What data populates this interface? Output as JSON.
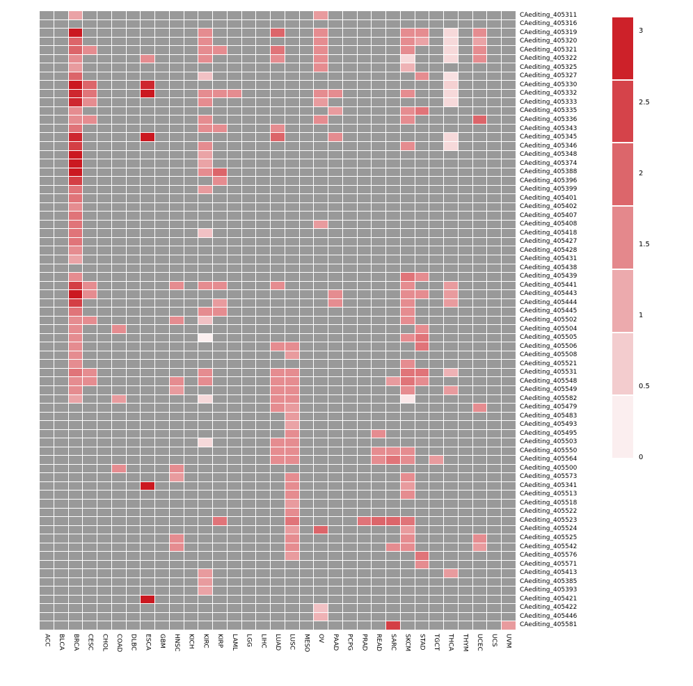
{
  "chart_data": {
    "type": "heatmap",
    "title": "",
    "rows": [
      "CAediting_405311",
      "CAediting_405316",
      "CAediting_405319",
      "CAediting_405320",
      "CAediting_405321",
      "CAediting_405322",
      "CAediting_405325",
      "CAediting_405327",
      "CAediting_405330",
      "CAediting_405332",
      "CAediting_405333",
      "CAediting_405335",
      "CAediting_405336",
      "CAediting_405343",
      "CAediting_405345",
      "CAediting_405346",
      "CAediting_405348",
      "CAediting_405374",
      "CAediting_405388",
      "CAediting_405396",
      "CAediting_405399",
      "CAediting_405401",
      "CAediting_405402",
      "CAediting_405407",
      "CAediting_405408",
      "CAediting_405418",
      "CAediting_405427",
      "CAediting_405428",
      "CAediting_405431",
      "CAediting_405438",
      "CAediting_405439",
      "CAediting_405441",
      "CAediting_405443",
      "CAediting_405444",
      "CAediting_405445",
      "CAediting_405502",
      "CAediting_405504",
      "CAediting_405505",
      "CAediting_405506",
      "CAediting_405508",
      "CAediting_405521",
      "CAediting_405531",
      "CAediting_405548",
      "CAediting_405549",
      "CAediting_405582",
      "CAediting_405479",
      "CAediting_405483",
      "CAediting_405493",
      "CAediting_405495",
      "CAediting_405503",
      "CAediting_405550",
      "CAediting_405564",
      "CAediting_405500",
      "CAediting_405573",
      "CAediting_405341",
      "CAediting_405513",
      "CAediting_405518",
      "CAediting_405522",
      "CAediting_405523",
      "CAediting_405524",
      "CAediting_405525",
      "CAediting_405542",
      "CAediting_405576",
      "CAediting_405571",
      "CAediting_405413",
      "CAediting_405385",
      "CAediting_405393",
      "CAediting_405421",
      "CAediting_405422",
      "CAediting_405446",
      "CAediting_405581"
    ],
    "columns": [
      "ACC",
      "BLCA",
      "BRCA",
      "CESC",
      "CHOL",
      "COAD",
      "DLBC",
      "ESCA",
      "GBM",
      "HNSC",
      "KICH",
      "KIRC",
      "KIRP",
      "LAML",
      "LGG",
      "LIHC",
      "LUAD",
      "LUSC",
      "MESO",
      "OV",
      "PAAD",
      "PCPG",
      "PRAD",
      "READ",
      "SARC",
      "SKCM",
      "STAD",
      "TGCT",
      "THCA",
      "THYM",
      "UCEC",
      "UCS",
      "UVM"
    ],
    "na_color": "#999999",
    "colormap": {
      "low": "#ffffff",
      "high": "#cb1820",
      "min": 0,
      "max": 3
    },
    "legend_position": "right",
    "cells": [
      [
        0,
        2,
        1.2
      ],
      [
        0,
        19,
        1.3
      ],
      [
        2,
        2,
        3
      ],
      [
        2,
        11,
        1.5
      ],
      [
        2,
        16,
        2
      ],
      [
        2,
        19,
        1.5
      ],
      [
        2,
        25,
        1.5
      ],
      [
        2,
        26,
        1.5
      ],
      [
        2,
        28,
        0.5
      ],
      [
        2,
        30,
        1.5
      ],
      [
        3,
        2,
        2
      ],
      [
        3,
        11,
        1.5
      ],
      [
        3,
        19,
        1.5
      ],
      [
        3,
        25,
        1.5
      ],
      [
        3,
        26,
        1.2
      ],
      [
        3,
        28,
        0.5
      ],
      [
        3,
        30,
        1.2
      ],
      [
        4,
        2,
        2
      ],
      [
        4,
        3,
        1.5
      ],
      [
        4,
        11,
        1.5
      ],
      [
        4,
        12,
        1.5
      ],
      [
        4,
        16,
        1.8
      ],
      [
        4,
        19,
        1.5
      ],
      [
        4,
        25,
        1.5
      ],
      [
        4,
        28,
        0.5
      ],
      [
        4,
        30,
        1.5
      ],
      [
        5,
        2,
        1.5
      ],
      [
        5,
        7,
        1.5
      ],
      [
        5,
        11,
        1.5
      ],
      [
        5,
        16,
        1.5
      ],
      [
        5,
        19,
        1.5
      ],
      [
        5,
        25,
        0.5
      ],
      [
        5,
        28,
        0.5
      ],
      [
        5,
        30,
        1.5
      ],
      [
        6,
        2,
        1.3
      ],
      [
        6,
        19,
        1.5
      ],
      [
        6,
        25,
        1
      ],
      [
        7,
        2,
        2
      ],
      [
        7,
        11,
        0.8
      ],
      [
        7,
        26,
        1.5
      ],
      [
        7,
        28,
        0.4
      ],
      [
        8,
        2,
        3
      ],
      [
        8,
        3,
        2
      ],
      [
        8,
        7,
        2.8
      ],
      [
        8,
        28,
        0.6
      ],
      [
        9,
        2,
        2.8
      ],
      [
        9,
        3,
        1.8
      ],
      [
        9,
        7,
        3
      ],
      [
        9,
        11,
        1.5
      ],
      [
        9,
        12,
        1.5
      ],
      [
        9,
        13,
        1.5
      ],
      [
        9,
        19,
        1.5
      ],
      [
        9,
        20,
        1.5
      ],
      [
        9,
        25,
        1.5
      ],
      [
        9,
        28,
        0.5
      ],
      [
        10,
        2,
        2.8
      ],
      [
        10,
        3,
        1.5
      ],
      [
        10,
        11,
        1.5
      ],
      [
        10,
        19,
        1.3
      ],
      [
        10,
        28,
        0.5
      ],
      [
        11,
        2,
        1.5
      ],
      [
        11,
        20,
        1.3
      ],
      [
        11,
        25,
        1.5
      ],
      [
        11,
        26,
        1.8
      ],
      [
        12,
        2,
        1.5
      ],
      [
        12,
        3,
        1.5
      ],
      [
        12,
        11,
        1.5
      ],
      [
        12,
        19,
        1.5
      ],
      [
        12,
        25,
        1.5
      ],
      [
        12,
        30,
        2
      ],
      [
        13,
        2,
        1.8
      ],
      [
        13,
        11,
        1.5
      ],
      [
        13,
        12,
        1.5
      ],
      [
        13,
        16,
        1.5
      ],
      [
        14,
        2,
        2.8
      ],
      [
        14,
        7,
        3
      ],
      [
        14,
        16,
        2
      ],
      [
        14,
        20,
        1.5
      ],
      [
        14,
        28,
        0.5
      ],
      [
        15,
        2,
        2.5
      ],
      [
        15,
        11,
        1.5
      ],
      [
        15,
        25,
        1.5
      ],
      [
        15,
        28,
        0.5
      ],
      [
        16,
        2,
        3
      ],
      [
        16,
        11,
        1.2
      ],
      [
        17,
        2,
        3
      ],
      [
        17,
        11,
        1.2
      ],
      [
        18,
        2,
        3
      ],
      [
        18,
        11,
        1.5
      ],
      [
        18,
        12,
        2
      ],
      [
        19,
        2,
        2.5
      ],
      [
        19,
        12,
        1.5
      ],
      [
        20,
        2,
        1.8
      ],
      [
        20,
        11,
        1.3
      ],
      [
        21,
        2,
        1.8
      ],
      [
        22,
        2,
        1.5
      ],
      [
        23,
        2,
        1.8
      ],
      [
        24,
        2,
        1.8
      ],
      [
        24,
        19,
        1.3
      ],
      [
        25,
        2,
        1.8
      ],
      [
        25,
        11,
        0.8
      ],
      [
        26,
        2,
        1.8
      ],
      [
        27,
        2,
        1.5
      ],
      [
        28,
        2,
        1.2
      ],
      [
        30,
        2,
        1.5
      ],
      [
        30,
        25,
        1.8
      ],
      [
        30,
        26,
        1.5
      ],
      [
        31,
        2,
        2.5
      ],
      [
        31,
        3,
        1.5
      ],
      [
        31,
        9,
        1.5
      ],
      [
        31,
        11,
        1.5
      ],
      [
        31,
        12,
        1.5
      ],
      [
        31,
        16,
        1.5
      ],
      [
        31,
        25,
        1.5
      ],
      [
        31,
        28,
        1.3
      ],
      [
        32,
        2,
        3
      ],
      [
        32,
        3,
        1.5
      ],
      [
        32,
        20,
        1.5
      ],
      [
        32,
        25,
        1.5
      ],
      [
        32,
        26,
        1.5
      ],
      [
        32,
        28,
        1.3
      ],
      [
        33,
        2,
        2.5
      ],
      [
        33,
        12,
        1.3
      ],
      [
        33,
        20,
        1.5
      ],
      [
        33,
        25,
        1.5
      ],
      [
        33,
        28,
        1.3
      ],
      [
        34,
        2,
        1.8
      ],
      [
        34,
        11,
        1.5
      ],
      [
        34,
        12,
        1.5
      ],
      [
        34,
        25,
        1.5
      ],
      [
        35,
        2,
        1.5
      ],
      [
        35,
        3,
        1.5
      ],
      [
        35,
        9,
        1.5
      ],
      [
        35,
        11,
        0.8
      ],
      [
        35,
        25,
        1.5
      ],
      [
        36,
        2,
        1.5
      ],
      [
        36,
        5,
        1.5
      ],
      [
        36,
        26,
        1.5
      ],
      [
        37,
        2,
        1.5
      ],
      [
        37,
        11,
        0.2
      ],
      [
        37,
        25,
        1.5
      ],
      [
        37,
        26,
        1.8
      ],
      [
        38,
        2,
        1.5
      ],
      [
        38,
        16,
        1.5
      ],
      [
        38,
        17,
        1.5
      ],
      [
        38,
        26,
        1.8
      ],
      [
        39,
        2,
        1.5
      ],
      [
        39,
        17,
        1.3
      ],
      [
        40,
        2,
        1.5
      ],
      [
        40,
        25,
        1.5
      ],
      [
        41,
        2,
        1.8
      ],
      [
        41,
        3,
        1.5
      ],
      [
        41,
        11,
        1.5
      ],
      [
        41,
        16,
        1.5
      ],
      [
        41,
        17,
        1.5
      ],
      [
        41,
        25,
        1.8
      ],
      [
        41,
        26,
        1.8
      ],
      [
        41,
        28,
        1
      ],
      [
        42,
        2,
        1.5
      ],
      [
        42,
        3,
        1.5
      ],
      [
        42,
        9,
        1.5
      ],
      [
        42,
        11,
        1.5
      ],
      [
        42,
        16,
        1.5
      ],
      [
        42,
        17,
        1.5
      ],
      [
        42,
        24,
        1.3
      ],
      [
        42,
        25,
        1.8
      ],
      [
        42,
        26,
        1.5
      ],
      [
        43,
        2,
        1.5
      ],
      [
        43,
        9,
        1.3
      ],
      [
        43,
        16,
        1.5
      ],
      [
        43,
        17,
        1.5
      ],
      [
        43,
        25,
        1.5
      ],
      [
        43,
        28,
        1.3
      ],
      [
        44,
        2,
        1.2
      ],
      [
        44,
        5,
        1.3
      ],
      [
        44,
        11,
        0.5
      ],
      [
        44,
        16,
        1.5
      ],
      [
        44,
        17,
        1.5
      ],
      [
        44,
        25,
        0.3
      ],
      [
        45,
        16,
        1.5
      ],
      [
        45,
        17,
        1.3
      ],
      [
        45,
        30,
        1.5
      ],
      [
        46,
        17,
        1.3
      ],
      [
        47,
        17,
        1.2
      ],
      [
        48,
        17,
        1.5
      ],
      [
        48,
        23,
        1.5
      ],
      [
        49,
        11,
        0.5
      ],
      [
        49,
        16,
        1.5
      ],
      [
        49,
        17,
        1.5
      ],
      [
        50,
        16,
        1.5
      ],
      [
        50,
        17,
        1.5
      ],
      [
        50,
        23,
        1.5
      ],
      [
        50,
        24,
        1.5
      ],
      [
        50,
        25,
        1.5
      ],
      [
        51,
        16,
        1.5
      ],
      [
        51,
        17,
        1.5
      ],
      [
        51,
        23,
        1.5
      ],
      [
        51,
        24,
        1.8
      ],
      [
        51,
        25,
        1.5
      ],
      [
        51,
        27,
        1.3
      ],
      [
        52,
        5,
        1.5
      ],
      [
        52,
        9,
        1.5
      ],
      [
        53,
        9,
        1.3
      ],
      [
        53,
        17,
        1.5
      ],
      [
        53,
        25,
        1.5
      ],
      [
        54,
        7,
        3
      ],
      [
        54,
        17,
        1.5
      ],
      [
        54,
        25,
        1.3
      ],
      [
        55,
        17,
        1.5
      ],
      [
        55,
        25,
        1.5
      ],
      [
        56,
        17,
        1.3
      ],
      [
        57,
        17,
        1.5
      ],
      [
        58,
        12,
        1.8
      ],
      [
        58,
        17,
        1.8
      ],
      [
        58,
        22,
        1.8
      ],
      [
        58,
        23,
        2
      ],
      [
        58,
        24,
        2
      ],
      [
        58,
        25,
        1.8
      ],
      [
        59,
        17,
        1.3
      ],
      [
        59,
        19,
        2
      ],
      [
        59,
        25,
        1.3
      ],
      [
        60,
        9,
        1.5
      ],
      [
        60,
        17,
        1.5
      ],
      [
        60,
        25,
        1.5
      ],
      [
        60,
        30,
        1.5
      ],
      [
        61,
        9,
        1.5
      ],
      [
        61,
        17,
        1.5
      ],
      [
        61,
        24,
        1.5
      ],
      [
        61,
        25,
        1.5
      ],
      [
        61,
        30,
        1.3
      ],
      [
        62,
        17,
        1.3
      ],
      [
        62,
        26,
        1.8
      ],
      [
        63,
        26,
        1.5
      ],
      [
        64,
        11,
        1.3
      ],
      [
        64,
        28,
        1.3
      ],
      [
        65,
        11,
        1.3
      ],
      [
        66,
        11,
        1.2
      ],
      [
        67,
        7,
        3
      ],
      [
        68,
        19,
        0.8
      ],
      [
        69,
        19,
        1
      ],
      [
        70,
        24,
        2.5
      ],
      [
        70,
        32,
        1.3
      ]
    ]
  },
  "colorbar": {
    "tick_labels": [
      "3",
      "2.5",
      "2",
      "1.5",
      "1",
      "0.5",
      "0"
    ],
    "tick_values": [
      3,
      2.5,
      2,
      1.5,
      1,
      0.5,
      0
    ],
    "segments": 7,
    "top_value": 3.1
  }
}
